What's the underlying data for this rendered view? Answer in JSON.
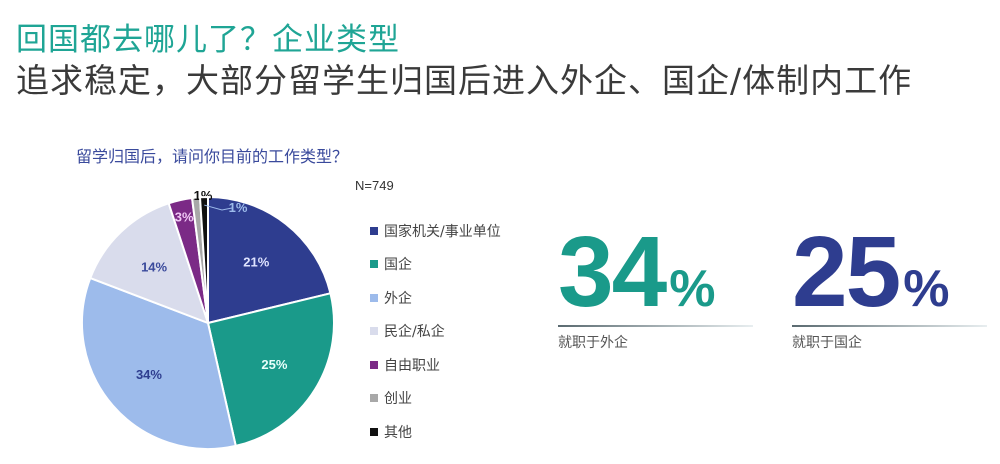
{
  "header": {
    "title": "回国都去哪儿了？企业类型",
    "subtitle": "追求稳定，大部分留学生归国后进入外企、国企/体制内工作"
  },
  "chart_data": {
    "type": "pie",
    "title": "留学归国后，请问你目前的工作类型？",
    "annotation": "N=749",
    "legend_position": "right",
    "start": "12 o'clock, clockwise",
    "slices": [
      {
        "label": "国家机关/事业单位",
        "value": 21,
        "display": "21%",
        "color": "#2e3d8f",
        "label_color": "#dfe4ff"
      },
      {
        "label": "国企",
        "value": 25,
        "display": "25%",
        "color": "#1a9a8a",
        "label_color": "#e8fffb"
      },
      {
        "label": "外企",
        "value": 34,
        "display": "34%",
        "color": "#9dbbeb",
        "label_color": "#2e3d8f"
      },
      {
        "label": "民企/私企",
        "value": 14,
        "display": "14%",
        "color": "#d9dcec",
        "label_color": "#3a4a9c"
      },
      {
        "label": "自由职业",
        "value": 3,
        "display": "3%",
        "color": "#7b2a86",
        "label_color": "#f0c8f5"
      },
      {
        "label": "创业",
        "value": 1,
        "display": "1%",
        "color": "#a8a8a8",
        "label_color": "#111111"
      },
      {
        "label": "其他",
        "value": 1,
        "display": "1%",
        "color": "#111111",
        "label_color": "#9dbbeb"
      }
    ]
  },
  "highlights": [
    {
      "value": "34",
      "unit": "%",
      "caption": "就职于外企",
      "color": "#1a9a8a"
    },
    {
      "value": "25",
      "unit": "%",
      "caption": "就职于国企",
      "color": "#2e3d8f"
    }
  ]
}
